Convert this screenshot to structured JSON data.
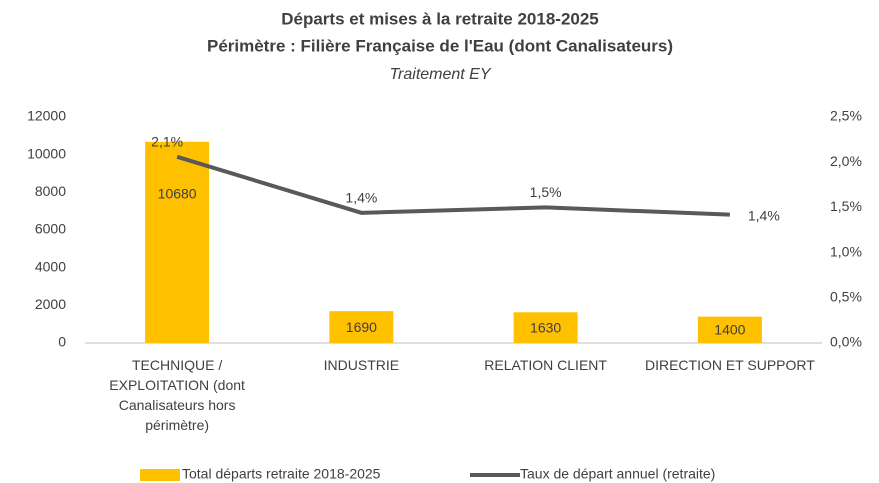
{
  "chart_data": {
    "type": "bar",
    "title": "Départs et mises à la retraite 2018-2025",
    "subtitle": "Périmètre : Filière Française de l'Eau (dont Canalisateurs)",
    "annotation": "Traitement EY",
    "categories": [
      "TECHNIQUE / EXPLOITATION (dont Canalisateurs hors périmètre)",
      "INDUSTRIE",
      "RELATION CLIENT",
      "DIRECTION ET SUPPORT"
    ],
    "series": [
      {
        "name": "Total départs retraite 2018-2025",
        "type": "bar",
        "color": "#FFC000",
        "values": [
          10680,
          1690,
          1630,
          1400
        ]
      },
      {
        "name": "Taux de départ annuel (retraite)",
        "type": "line",
        "axis": "y2",
        "color": "#595959",
        "values": [
          2.06,
          1.44,
          1.5,
          1.42
        ],
        "value_labels": [
          "2,1%",
          "1,4%",
          "1,5%",
          "1,4%"
        ]
      }
    ],
    "ylim": [
      0,
      12000
    ],
    "yticks": [
      0,
      2000,
      4000,
      6000,
      8000,
      10000,
      12000
    ],
    "y2lim": [
      0,
      2.5
    ],
    "y2ticks": [
      {
        "value": 0,
        "label": "0,0%"
      },
      {
        "value": 0.5,
        "label": "0,5%"
      },
      {
        "value": 1,
        "label": "1,0%"
      },
      {
        "value": 1.5,
        "label": "1,5%"
      },
      {
        "value": 2,
        "label": "2,0%"
      },
      {
        "value": 2.5,
        "label": "2,5%"
      }
    ],
    "grid": false,
    "legend": "bottom"
  }
}
